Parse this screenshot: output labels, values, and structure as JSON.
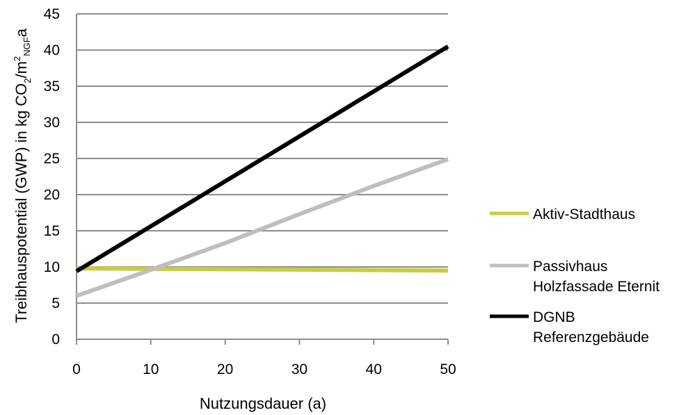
{
  "chart_data": {
    "type": "line",
    "xlabel": "Nutzungsdauer (a)",
    "ylabel": {
      "prefix": "Treibhauspotential (GWP) in kg CO",
      "sub1": "2",
      "mid": "/m",
      "sup": "2",
      "sub2": "NGF",
      "suffix": "a"
    },
    "xlim": [
      0,
      50
    ],
    "ylim": [
      0,
      45
    ],
    "xticks": [
      0,
      10,
      20,
      30,
      40,
      50
    ],
    "yticks": [
      0,
      5,
      10,
      15,
      20,
      25,
      30,
      35,
      40,
      45
    ],
    "grid": "horizontal",
    "legend_position": "right",
    "series": [
      {
        "name": "Aktiv-Stadthaus",
        "legend_lines": [
          "Aktiv-Stadthaus"
        ],
        "color": "#c8cc45",
        "x": [
          0,
          50
        ],
        "y": [
          9.8,
          9.5
        ]
      },
      {
        "name": "Passivhaus Holzfassade Eternit",
        "legend_lines": [
          "Passivhaus",
          "Holzfassade Eternit"
        ],
        "color": "#bebebe",
        "x": [
          0,
          10,
          20,
          30,
          40,
          50
        ],
        "y": [
          6.0,
          9.6,
          13.3,
          17.3,
          21.2,
          24.9
        ]
      },
      {
        "name": "DGNB Referenzgebäude",
        "legend_lines": [
          "DGNB",
          "Referenzgebäude"
        ],
        "color": "#000000",
        "x": [
          0,
          50
        ],
        "y": [
          9.4,
          40.5
        ]
      }
    ]
  }
}
